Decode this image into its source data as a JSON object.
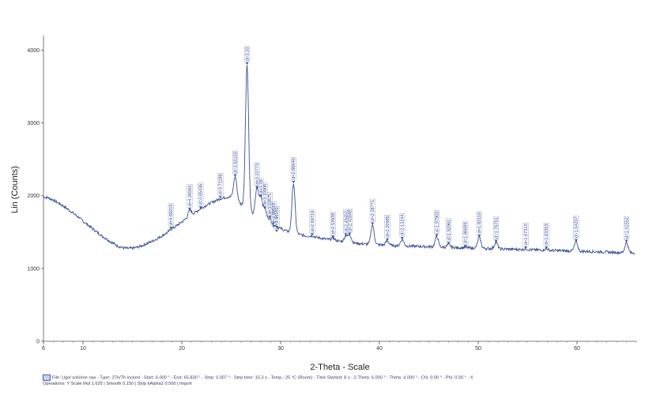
{
  "chart_data": {
    "type": "line",
    "xlabel": "2-Theta - Scale",
    "ylabel": "Lin (Counts)",
    "xlim": [
      6,
      66
    ],
    "ylim": [
      0,
      4200
    ],
    "x_ticks": [
      6,
      10,
      20,
      30,
      40,
      50,
      60
    ],
    "y_ticks": [
      0,
      1000,
      2000,
      3000,
      4000
    ],
    "series": [
      {
        "line_color": "#3b4f99",
        "x": [
          6,
          6.5,
          7,
          7.5,
          8,
          8.5,
          9,
          9.5,
          10,
          10.5,
          11,
          11.5,
          12,
          12.5,
          13,
          13.5,
          14,
          14.5,
          15,
          15.5,
          16,
          16.5,
          17,
          17.5,
          18,
          18.5,
          19,
          19.5,
          20,
          20.5,
          21,
          21.5,
          22,
          22.5,
          23,
          23.5,
          24,
          24.5,
          25,
          25.5,
          26,
          26.5,
          27,
          27.5,
          28,
          28.5,
          29,
          29.5,
          30,
          30.5,
          31,
          31.5,
          32,
          32.5,
          33,
          33.5,
          34,
          34.5,
          35,
          35.5,
          36,
          36.5,
          37,
          37.5,
          38,
          38.5,
          39,
          39.5,
          40,
          40.5,
          41,
          41.5,
          42,
          42.5,
          43,
          43.5,
          44,
          44.5,
          45,
          45.5,
          46,
          46.5,
          47,
          47.5,
          48,
          48.5,
          49,
          49.5,
          50,
          50.5,
          51,
          51.5,
          52,
          52.5,
          53,
          53.5,
          54,
          54.5,
          55,
          55.5,
          56,
          56.5,
          57,
          57.5,
          58,
          58.5,
          59,
          59.5,
          60,
          60.5,
          61,
          61.5,
          62,
          62.5,
          63,
          63.5,
          64,
          64.5,
          65,
          65.5
        ],
        "y": [
          1985,
          1970,
          1940,
          1900,
          1860,
          1810,
          1760,
          1710,
          1650,
          1600,
          1545,
          1490,
          1440,
          1395,
          1350,
          1310,
          1285,
          1275,
          1278,
          1292,
          1315,
          1345,
          1375,
          1410,
          1450,
          1490,
          1540,
          1590,
          1640,
          1690,
          1740,
          1785,
          1830,
          1870,
          1905,
          1935,
          1960,
          1980,
          1985,
          1970,
          1880,
          1830,
          1760,
          1720,
          1690,
          1660,
          1620,
          1585,
          1550,
          1520,
          1495,
          1480,
          1465,
          1450,
          1440,
          1430,
          1420,
          1405,
          1395,
          1385,
          1375,
          1365,
          1355,
          1348,
          1342,
          1338,
          1333,
          1330,
          1326,
          1322,
          1318,
          1314,
          1312,
          1310,
          1308,
          1306,
          1304,
          1302,
          1300,
          1298,
          1295,
          1292,
          1290,
          1288,
          1286,
          1284,
          1282,
          1280,
          1278,
          1276,
          1274,
          1272,
          1270,
          1268,
          1266,
          1264,
          1262,
          1260,
          1258,
          1256,
          1254,
          1252,
          1250,
          1248,
          1246,
          1244,
          1242,
          1240,
          1238,
          1236,
          1234,
          1232,
          1230,
          1228,
          1225,
          1222,
          1220,
          1218,
          1216,
          1214
        ]
      }
    ],
    "peaks": [
      {
        "label": "d=4.69215",
        "x": 18.9,
        "y": 1540
      },
      {
        "label": "d=4.26565",
        "x": 20.8,
        "y": 1800
      },
      {
        "label": "d=4.05436",
        "x": 21.9,
        "y": 1820
      },
      {
        "label": "d=3.71186",
        "x": 23.9,
        "y": 1960
      },
      {
        "label": "d=3.50153",
        "x": 25.4,
        "y": 2260
      },
      {
        "label": "d=3.33",
        "x": 26.6,
        "y": 3800
      },
      {
        "label": "d=3.22773",
        "x": 27.6,
        "y": 2100
      },
      {
        "label": "d=3.18",
        "x": 28.0,
        "y": 1980
      },
      {
        "label": "d=3.10906",
        "x": 28.4,
        "y": 1820
      },
      {
        "label": "d=3.03575",
        "x": 28.9,
        "y": 1690
      },
      {
        "label": "d=2.99018",
        "x": 29.3,
        "y": 1560
      },
      {
        "label": "d=2.96151",
        "x": 29.6,
        "y": 1500
      },
      {
        "label": "d=2.86640",
        "x": 31.3,
        "y": 2170
      },
      {
        "label": "d=2.69719",
        "x": 33.2,
        "y": 1450
      },
      {
        "label": "d=2.53938",
        "x": 35.3,
        "y": 1420
      },
      {
        "label": "d=2.45452",
        "x": 36.6,
        "y": 1450
      },
      {
        "label": "d=2.42848",
        "x": 37.0,
        "y": 1460
      },
      {
        "label": "d=2.28771",
        "x": 39.3,
        "y": 1600
      },
      {
        "label": "d=2.20985",
        "x": 40.8,
        "y": 1380
      },
      {
        "label": "d=2.13244",
        "x": 42.3,
        "y": 1400
      },
      {
        "label": "d=1.97903",
        "x": 45.8,
        "y": 1440
      },
      {
        "label": "d=1.92961",
        "x": 47.0,
        "y": 1330
      },
      {
        "label": "d=1.86689",
        "x": 48.7,
        "y": 1290
      },
      {
        "label": "d=1.82110",
        "x": 50.1,
        "y": 1430
      },
      {
        "label": "d=1.76701",
        "x": 51.8,
        "y": 1360
      },
      {
        "label": "d=1.67315",
        "x": 54.8,
        "y": 1270
      },
      {
        "label": "d=1.63353",
        "x": 56.9,
        "y": 1270
      },
      {
        "label": "d=1.54207",
        "x": 59.9,
        "y": 1370
      },
      {
        "label": "d=1.41552",
        "x": 65.0,
        "y": 1360
      }
    ]
  },
  "footer": {
    "line1": "File: Ugol sohirine raw - Type: 2Th/Th locked - Start: 6.000 ° - End: 65.830 ° - Step: 0.007 ° - Step time: 15.3 s - Temp.: 25 °C (Room) - Time Started: 8 s - 2-Theta: 6.000 ° - Theta: 4.000 ° - Chi: 0.00 ° - Phi: 0.00 ° - X",
    "line2": "Operations: Y Scale Mul 1.625 | Smooth 0.150 | Strip kAlpha2 0.500 | Import"
  }
}
